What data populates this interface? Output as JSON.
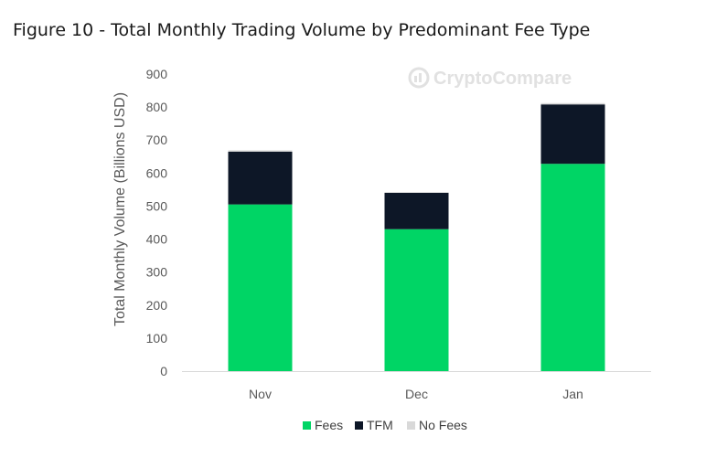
{
  "title": "Figure 10 - Total Monthly Trading Volume by Predominant Fee Type",
  "watermark": {
    "text": "CryptoCompare",
    "icon": "cryptocompare-logo-icon"
  },
  "chart_data": {
    "type": "bar",
    "stacked": true,
    "categories": [
      "Nov",
      "Dec",
      "Jan"
    ],
    "series": [
      {
        "name": "Fees",
        "color": "#00d565",
        "values": [
          505,
          430,
          628
        ]
      },
      {
        "name": "TFM",
        "color": "#0d1727",
        "values": [
          160,
          110,
          180
        ]
      },
      {
        "name": "No Fees",
        "color": "#d9d9d9",
        "values": [
          4,
          2,
          4
        ]
      }
    ],
    "xlabel": "",
    "ylabel": "Total Monthly Volume (Billions USD)",
    "ylim": [
      0,
      900
    ],
    "yticks": [
      0,
      100,
      200,
      300,
      400,
      500,
      600,
      700,
      800,
      900
    ],
    "grid": false,
    "legend_position": "bottom"
  }
}
